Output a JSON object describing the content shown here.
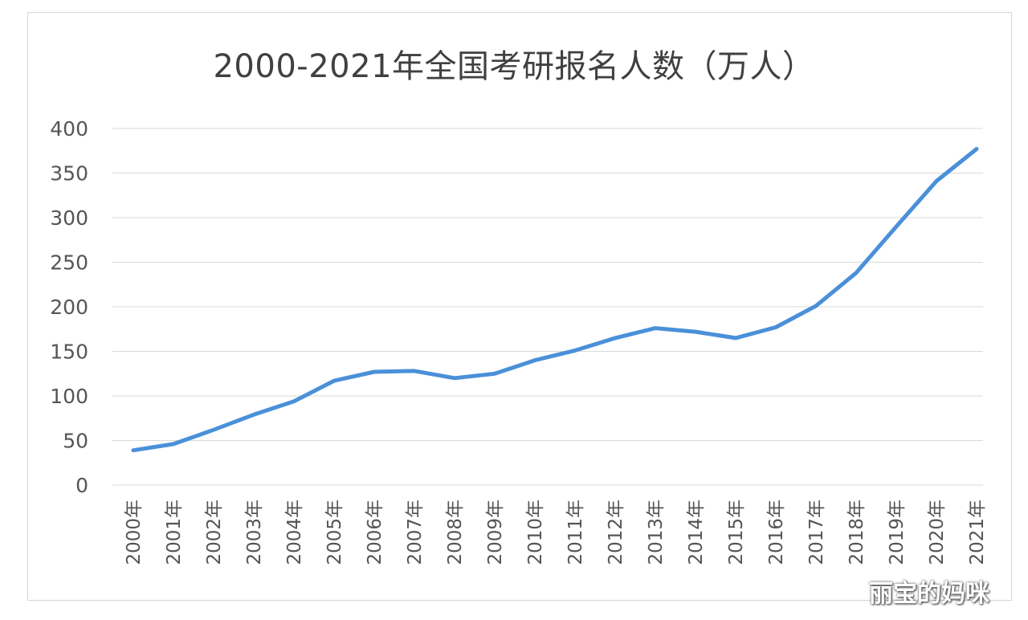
{
  "chart_data": {
    "type": "line",
    "title": "2000-2021年全国考研报名人数（万人）",
    "xlabel": "",
    "ylabel": "",
    "categories": [
      "2000年",
      "2001年",
      "2002年",
      "2003年",
      "2004年",
      "2005年",
      "2006年",
      "2007年",
      "2008年",
      "2009年",
      "2010年",
      "2011年",
      "2012年",
      "2013年",
      "2014年",
      "2015年",
      "2016年",
      "2017年",
      "2018年",
      "2019年",
      "2020年",
      "2021年"
    ],
    "series": [
      {
        "values": [
          39,
          46,
          62,
          79,
          94,
          117,
          127,
          128,
          120,
          125,
          140,
          151,
          165,
          176,
          172,
          165,
          177,
          201,
          238,
          290,
          341,
          377
        ],
        "color": "#4a90d9"
      }
    ],
    "ylim": [
      0,
      400
    ],
    "yticks": [
      "0",
      "50",
      "100",
      "150",
      "200",
      "250",
      "300",
      "350",
      "400"
    ],
    "grid": true,
    "legend": "none"
  },
  "watermark": "丽宝的妈咪"
}
